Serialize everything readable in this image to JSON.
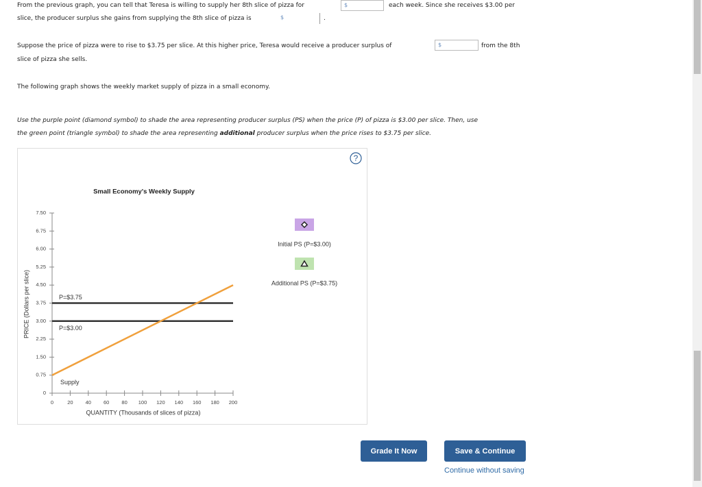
{
  "question": {
    "p1": [
      "From the previous graph, you can tell that Teresa is willing to supply her 8th slice of pizza for",
      "each week. Since she receives $3.00 per",
      "slice, the producer surplus she gains from supplying the 8th slice of pizza is",
      "."
    ],
    "p1_inputs": [
      "$",
      "$"
    ],
    "p2": [
      "Suppose the price of pizza were to rise to $3.75 per slice. At this higher price, Teresa would receive a producer surplus of",
      "from the 8th",
      "slice of pizza she sells."
    ],
    "p2_input": "$",
    "p3": "The following graph shows the weekly market supply of pizza in a small economy.",
    "p4": [
      "Use the purple point (diamond symbol) to shade the area representing producer surplus (PS) when the price (P) of pizza is $3.00 per slice. Then, use",
      "the green point (triangle symbol) to shade the area representing",
      "additional",
      "producer surplus when the price rises to $3.75 per slice."
    ]
  },
  "help": "?",
  "chart_data": {
    "type": "line",
    "title": "Small Economy's Weekly Supply",
    "x_label": "QUANTITY (Thousands of slices of pizza)",
    "y_label": "PRICE (Dollars per slice)",
    "xlim": [
      0,
      200
    ],
    "xticks": [
      0,
      20,
      40,
      60,
      80,
      100,
      120,
      140,
      160,
      180,
      200
    ],
    "ylim": [
      0,
      7.5
    ],
    "yticks": [
      0,
      0.75,
      {
        "value": 1.5,
        "label": "1.50"
      },
      2.25,
      {
        "value": 3,
        "label": "3.00"
      },
      3.75,
      {
        "value": 4.5,
        "label": "4.50"
      },
      5.25,
      {
        "value": 6,
        "label": "6.00"
      },
      6.75,
      {
        "value": 7.5,
        "label": "7.50"
      }
    ],
    "grid": false,
    "series": [
      {
        "name": "Supply",
        "color": "#f0a03c",
        "x": [
          0,
          200
        ],
        "values": [
          0.75,
          4.5
        ]
      }
    ],
    "reference_lines": [
      {
        "label": "P=$3.75",
        "value": 3.75,
        "color": "#333333"
      },
      {
        "label": "P=$3.00",
        "value": 3,
        "color": "#333333"
      }
    ],
    "tools": [
      {
        "label": "Initial PS (P=$3.00)",
        "color": "#c9a5e6",
        "symbol": "diamond"
      },
      {
        "label": "Additional PS (P=$3.75)",
        "color": "#bfe3b0",
        "symbol": "triangle"
      }
    ]
  },
  "buttons": [
    "Grade It Now",
    "Save & Continue"
  ],
  "link": "Continue without saving"
}
